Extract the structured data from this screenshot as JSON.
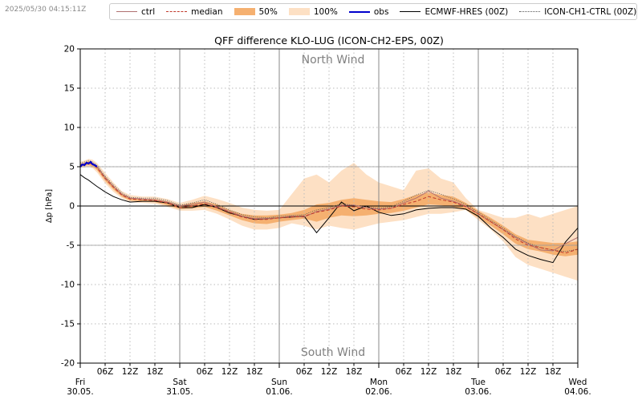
{
  "timestamp": "2025/05/30 04:15:11Z",
  "legend": [
    {
      "label": "ctrl",
      "style": "solid",
      "color": "#b07070"
    },
    {
      "label": "median",
      "style": "dashed",
      "color": "#c0392b"
    },
    {
      "label": "50%",
      "style": "fill",
      "color": "#f5b070"
    },
    {
      "label": "100%",
      "style": "fill",
      "color": "#fde0c4"
    },
    {
      "label": "obs",
      "style": "solid",
      "color": "#0000cc"
    },
    {
      "label": "ECMWF-HRES (00Z)",
      "style": "solid",
      "color": "#000000"
    },
    {
      "label": "ICON-CH1-CTRL (00Z)",
      "style": "dotted",
      "color": "#555555"
    }
  ],
  "chart_data": {
    "type": "line",
    "title": "QFF difference KLO-LUG (ICON-CH2-EPS, 00Z)",
    "ylabel": "Δp [hPa]",
    "xlabel": "",
    "ylim": [
      -20,
      20
    ],
    "xlim_hours": [
      0,
      120
    ],
    "yticks": [
      20,
      15,
      10,
      5,
      0,
      -5,
      -10,
      -15,
      -20
    ],
    "annotations": {
      "top": "North Wind",
      "bottom": "South Wind"
    },
    "hour_tick_labels": [
      "06Z",
      "12Z",
      "18Z"
    ],
    "day_labels": [
      {
        "day": "Fri",
        "date": "30.05."
      },
      {
        "day": "Sat",
        "date": "31.05."
      },
      {
        "day": "Sun",
        "date": "01.06."
      },
      {
        "day": "Mon",
        "date": "02.06."
      },
      {
        "day": "Tue",
        "date": "03.06."
      },
      {
        "day": "Wed",
        "date": "04.06."
      }
    ],
    "grid": true,
    "colors": {
      "p50": "#f5b070",
      "p100": "#fde0c4",
      "median": "#c0392b",
      "ctrl": "#b07070",
      "obs": "#0000cc",
      "hres": "#000000",
      "icon_ch1": "#555555"
    },
    "x_hours": [
      0,
      1,
      2,
      3,
      4,
      6,
      8,
      10,
      12,
      15,
      18,
      21,
      24,
      27,
      30,
      33,
      36,
      39,
      42,
      45,
      48,
      51,
      54,
      57,
      60,
      63,
      66,
      69,
      72,
      75,
      78,
      81,
      84,
      87,
      90,
      93,
      96,
      99,
      102,
      105,
      108,
      111,
      114,
      117,
      120
    ],
    "series": {
      "p100_upper": [
        5.6,
        5.8,
        6.0,
        5.9,
        5.5,
        4.2,
        3.0,
        1.9,
        1.4,
        1.2,
        1.2,
        0.9,
        0.4,
        0.8,
        1.3,
        0.9,
        0.4,
        -0.2,
        -0.5,
        -0.6,
        -0.5,
        1.5,
        3.5,
        4.0,
        3.0,
        4.5,
        5.5,
        4.0,
        3.0,
        2.5,
        2.0,
        4.5,
        4.8,
        3.5,
        3.0,
        1.0,
        -0.5,
        -1.0,
        -1.5,
        -1.5,
        -1.0,
        -1.5,
        -1.0,
        -0.5,
        0.0
      ],
      "p100_lower": [
        4.9,
        4.9,
        5.0,
        4.8,
        4.3,
        2.9,
        1.8,
        1.0,
        0.5,
        0.4,
        0.3,
        -0.1,
        -0.6,
        -0.6,
        -0.5,
        -1.0,
        -1.7,
        -2.5,
        -3.0,
        -3.0,
        -2.8,
        -2.2,
        -2.5,
        -3.0,
        -2.5,
        -2.8,
        -3.0,
        -2.6,
        -2.2,
        -2.0,
        -1.8,
        -1.4,
        -1.0,
        -1.0,
        -0.8,
        -0.5,
        -1.8,
        -3.0,
        -4.5,
        -6.5,
        -7.5,
        -8.0,
        -8.5,
        -9.0,
        -9.5
      ],
      "p50_upper": [
        5.4,
        5.5,
        5.7,
        5.5,
        5.1,
        3.8,
        2.6,
        1.6,
        1.1,
        0.9,
        0.9,
        0.6,
        0.1,
        0.4,
        0.6,
        0.2,
        -0.5,
        -1.0,
        -1.2,
        -1.2,
        -1.1,
        -0.9,
        -0.5,
        0.2,
        0.4,
        0.8,
        1.0,
        0.8,
        0.6,
        0.5,
        0.9,
        1.4,
        1.7,
        1.4,
        1.2,
        0.4,
        -0.6,
        -1.5,
        -2.5,
        -3.6,
        -4.3,
        -4.5,
        -4.7,
        -4.7,
        -4.5
      ],
      "p50_lower": [
        5.0,
        5.1,
        5.2,
        5.0,
        4.6,
        3.2,
        2.1,
        1.2,
        0.7,
        0.6,
        0.5,
        0.1,
        -0.4,
        -0.3,
        -0.1,
        -0.6,
        -1.2,
        -1.8,
        -2.2,
        -2.3,
        -2.0,
        -1.8,
        -1.6,
        -2.0,
        -1.5,
        -1.2,
        -1.3,
        -1.2,
        -1.0,
        -0.9,
        -0.6,
        -0.2,
        0.2,
        0.1,
        -0.1,
        -0.5,
        -1.5,
        -2.5,
        -3.6,
        -4.8,
        -5.5,
        -5.8,
        -6.2,
        -6.4,
        -6.2
      ],
      "median": [
        5.2,
        5.3,
        5.5,
        5.3,
        4.9,
        3.5,
        2.4,
        1.4,
        0.9,
        0.8,
        0.7,
        0.4,
        -0.2,
        0.0,
        0.3,
        -0.2,
        -0.8,
        -1.4,
        -1.7,
        -1.7,
        -1.5,
        -1.4,
        -1.3,
        -0.8,
        -0.5,
        0.0,
        -0.1,
        -0.4,
        -0.5,
        -0.3,
        0.2,
        0.6,
        1.2,
        0.8,
        0.5,
        -0.1,
        -1.0,
        -2.0,
        -3.0,
        -4.2,
        -5.0,
        -5.3,
        -5.6,
        -6.0,
        -5.5
      ],
      "ctrl": [
        5.3,
        5.4,
        5.6,
        5.4,
        5.0,
        3.6,
        2.5,
        1.5,
        1.0,
        0.9,
        0.8,
        0.5,
        0.0,
        0.2,
        0.5,
        -0.1,
        -0.7,
        -1.3,
        -1.6,
        -1.6,
        -1.5,
        -1.3,
        -1.4,
        -0.7,
        -0.4,
        0.1,
        0.1,
        -0.2,
        -0.4,
        -0.3,
        0.4,
        1.0,
        1.9,
        1.0,
        0.6,
        0.0,
        -1.0,
        -2.0,
        -3.0,
        -4.0,
        -4.8,
        -5.6,
        -5.7,
        -4.8,
        -4.0
      ],
      "hres": [
        4.0,
        3.6,
        3.3,
        2.9,
        2.5,
        1.8,
        1.2,
        0.8,
        0.5,
        0.6,
        0.6,
        0.4,
        -0.2,
        -0.2,
        0.2,
        -0.2,
        -0.9,
        -1.3,
        -1.7,
        -1.6,
        -1.5,
        -1.4,
        -1.3,
        -3.4,
        -1.5,
        0.5,
        -0.6,
        0.0,
        -0.8,
        -1.2,
        -1.0,
        -0.5,
        -0.3,
        -0.2,
        -0.2,
        -0.4,
        -1.3,
        -2.8,
        -4.0,
        -5.5,
        -6.3,
        -6.8,
        -7.2,
        -4.6,
        -2.8
      ],
      "icon_ch1": [
        5.5,
        5.6,
        5.8,
        5.6,
        5.2,
        3.8,
        2.7,
        1.7,
        1.1,
        1.0,
        1.0,
        0.7,
        0.1,
        0.4,
        0.8,
        0.2,
        -0.5,
        -1.1,
        -1.4,
        -1.5,
        -1.3,
        -1.2,
        -1.1,
        -0.5,
        -0.2,
        0.3,
        0.1,
        -0.1,
        -0.3,
        -0.1,
        0.6,
        1.4,
        2.0,
        1.5,
        0.9,
        0.2,
        -0.8,
        -1.8,
        -2.8,
        -3.9,
        -4.7,
        -5.3,
        -5.6,
        -5.8,
        -5.5
      ],
      "obs_x": [
        0,
        0.5,
        1,
        1.5,
        2,
        2.5,
        3,
        3.5,
        4
      ],
      "obs": [
        5.0,
        5.3,
        5.2,
        5.5,
        5.4,
        5.6,
        5.3,
        5.2,
        5.0
      ]
    }
  }
}
